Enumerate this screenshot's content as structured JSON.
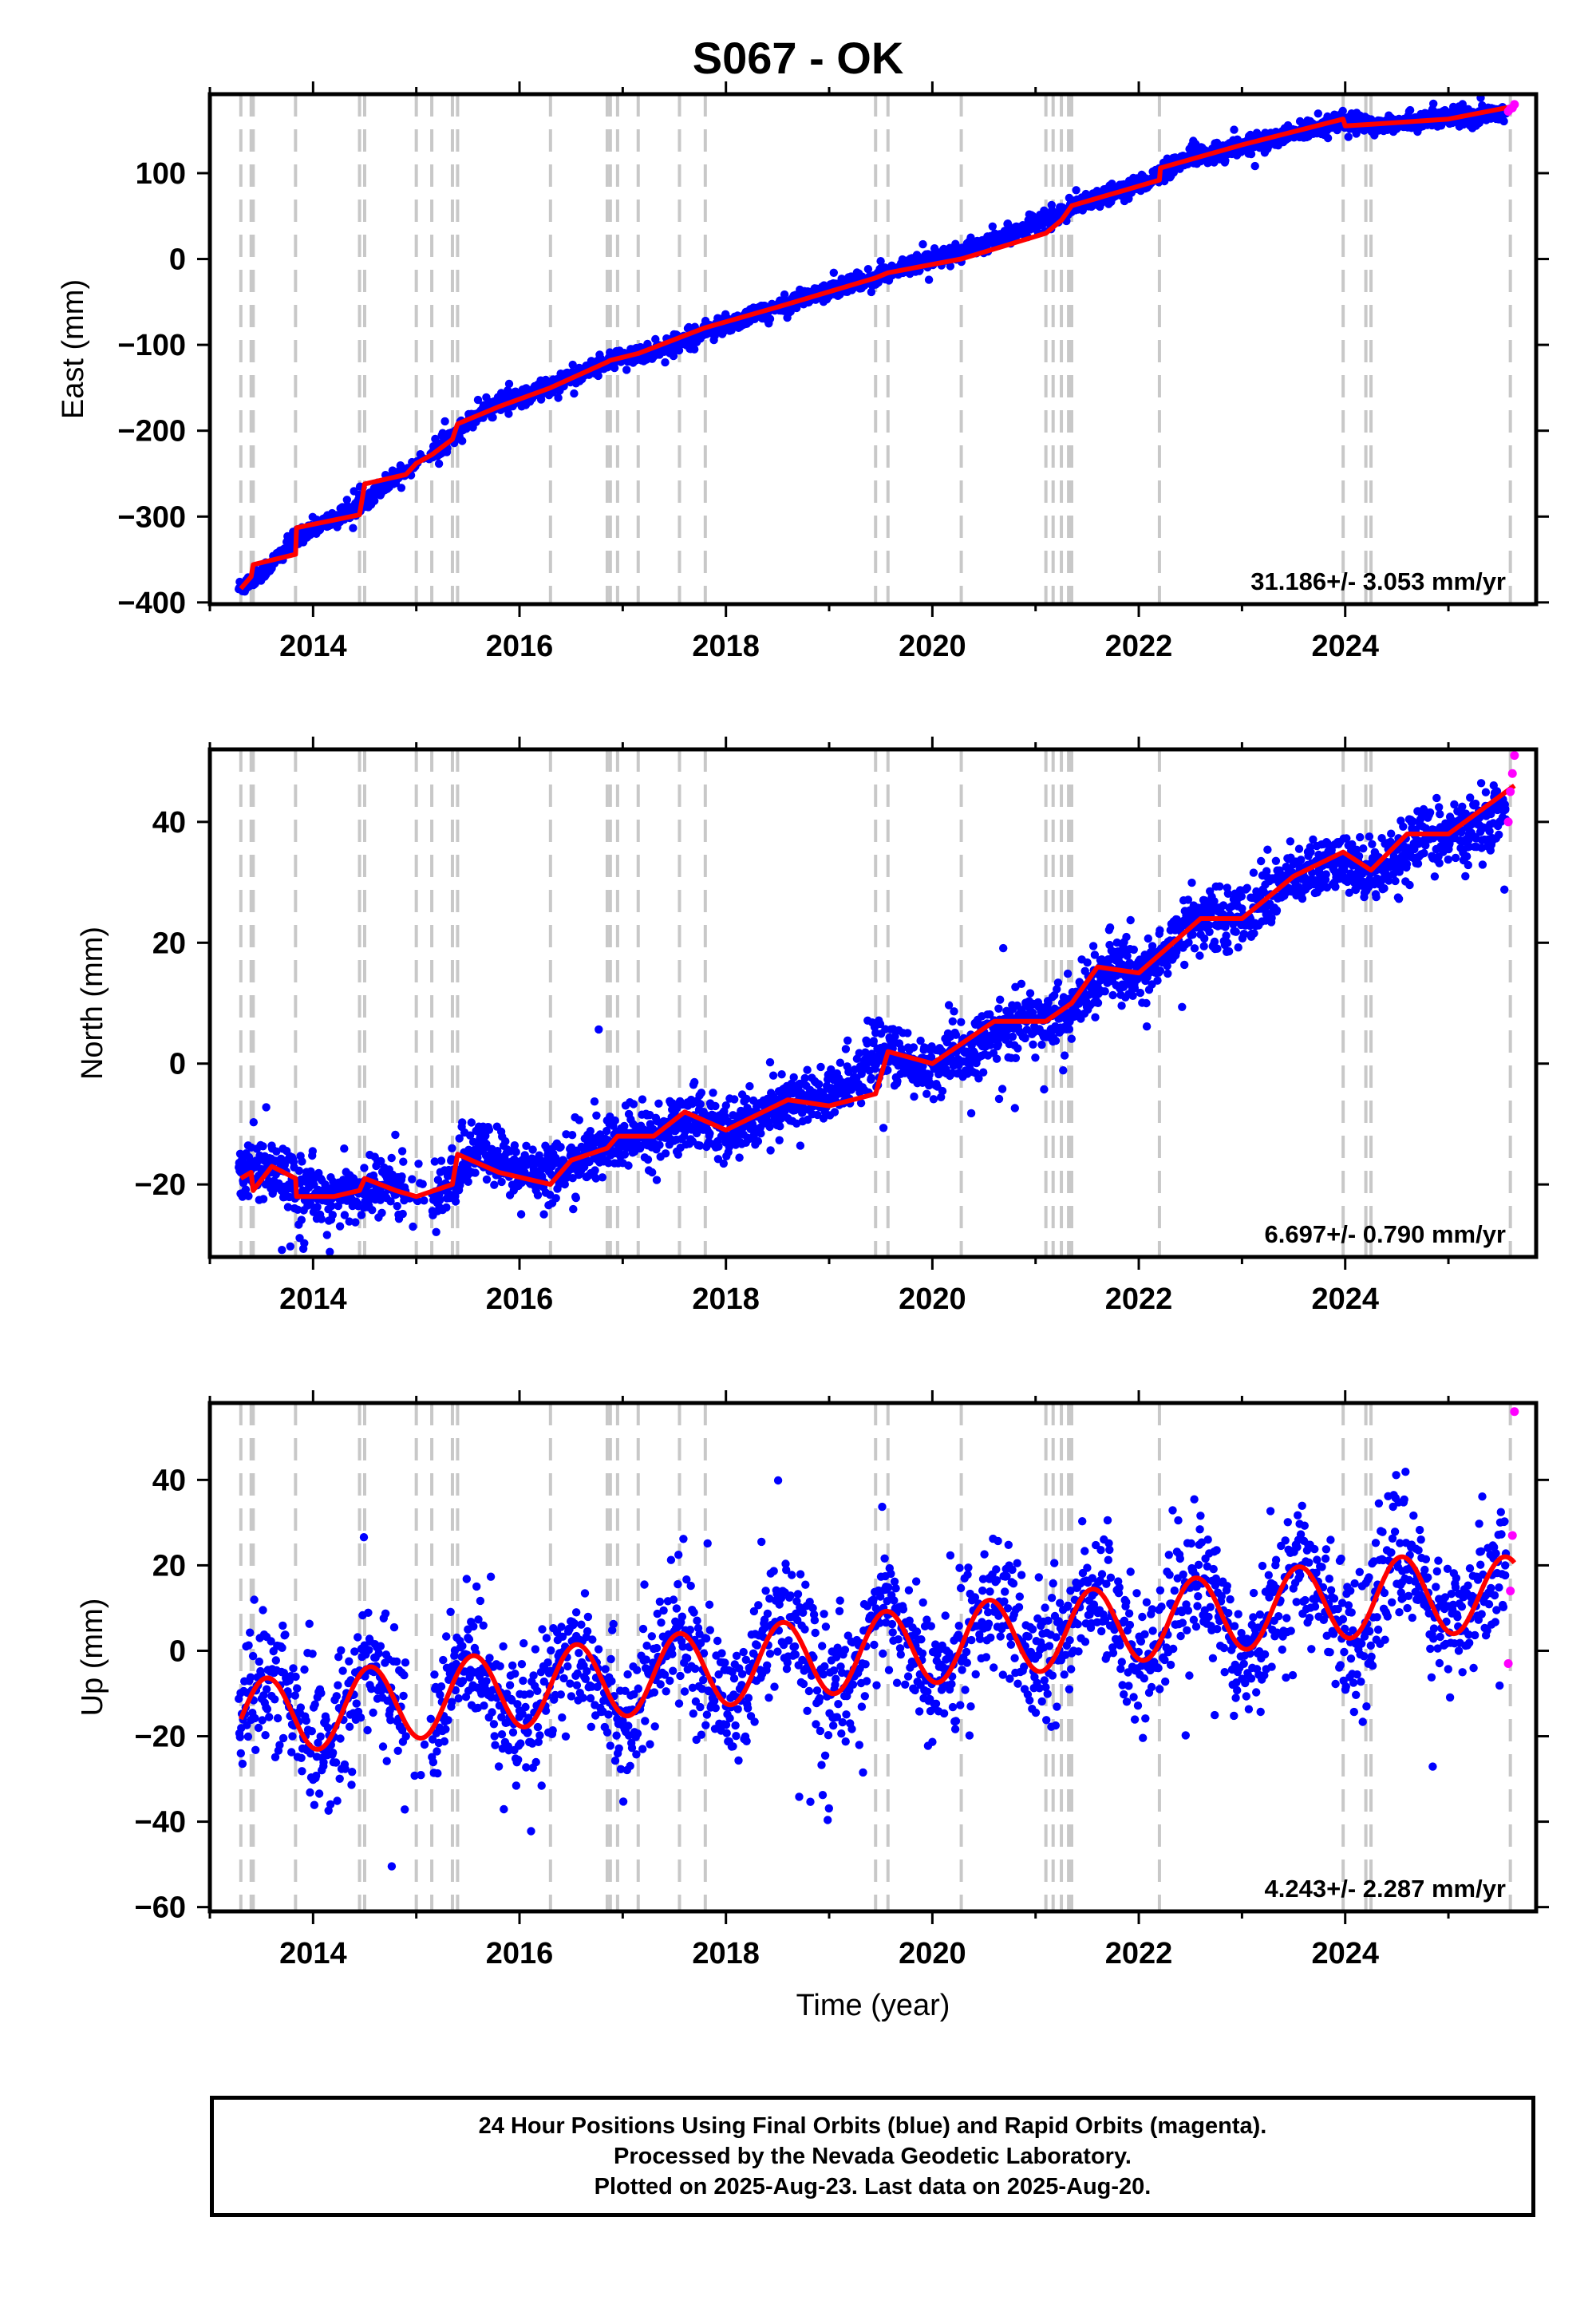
{
  "title": "S067 - OK",
  "colors": {
    "final_orbits": "#0000ff",
    "rapid_orbits": "#ff00ff",
    "model": "#ff0000",
    "steps": "#c8c8c8"
  },
  "footer": {
    "line1": "24 Hour Positions Using Final Orbits (blue) and Rapid Orbits (magenta).",
    "line2": "Processed by the Nevada Geodetic Laboratory.",
    "line3": "Plotted on 2025-Aug-23. Last data on 2025-Aug-20."
  },
  "chart_data": [
    {
      "type": "scatter",
      "title": "S067 - OK",
      "ylabel": "East (mm)",
      "xlabel": "",
      "xlim": [
        2013.0,
        2025.85
      ],
      "ylim": [
        -402,
        192
      ],
      "xticks": [
        2014,
        2016,
        2018,
        2020,
        2022,
        2024
      ],
      "yticks": [
        -400,
        -300,
        -200,
        -100,
        0,
        100
      ],
      "rate": "31.186+/- 3.053 mm/yr",
      "steps": [
        2013.3,
        2013.4,
        2013.42,
        2013.83,
        2014.45,
        2014.5,
        2015.0,
        2015.15,
        2015.35,
        2015.4,
        2016.3,
        2016.85,
        2016.88,
        2016.95,
        2017.15,
        2017.55,
        2017.8,
        2019.45,
        2019.57,
        2020.28,
        2021.1,
        2021.17,
        2021.25,
        2021.32,
        2021.35,
        2022.2,
        2023.98,
        2024.2,
        2024.25,
        2025.6
      ],
      "series": [
        {
          "name": "Final Orbits",
          "color": "#0000ff",
          "x": [
            2013.3,
            2013.6,
            2013.9,
            2014.3,
            2014.7,
            2015.2,
            2015.6,
            2016.0,
            2016.5,
            2016.9,
            2017.3,
            2017.7,
            2018.1,
            2018.6,
            2019.0,
            2019.5,
            2019.9,
            2020.4,
            2020.8,
            2021.3,
            2021.7,
            2022.1,
            2022.5,
            2023.0,
            2023.4,
            2023.9,
            2024.3,
            2024.8,
            2025.2,
            2025.55
          ],
          "y": [
            -383,
            -355,
            -318,
            -298,
            -262,
            -222,
            -180,
            -160,
            -138,
            -118,
            -108,
            -88,
            -72,
            -52,
            -35,
            -20,
            -2,
            12,
            32,
            55,
            75,
            92,
            118,
            132,
            142,
            160,
            157,
            163,
            166,
            170
          ]
        },
        {
          "name": "Rapid Orbits",
          "color": "#ff00ff",
          "x": [
            2025.58,
            2025.6,
            2025.62,
            2025.64
          ],
          "y": [
            172,
            175,
            176,
            180
          ]
        }
      ],
      "model": {
        "x": [
          2013.3,
          2013.4,
          2013.42,
          2013.83,
          2013.84,
          2014.45,
          2014.5,
          2014.9,
          2015.0,
          2015.15,
          2015.35,
          2015.4,
          2015.8,
          2016.3,
          2016.85,
          2016.88,
          2016.95,
          2017.15,
          2017.8,
          2018.5,
          2019.45,
          2019.57,
          2020.28,
          2021.1,
          2021.25,
          2021.35,
          2022.2,
          2022.21,
          2023.0,
          2023.98,
          2024.0,
          2024.25,
          2025.0,
          2025.64
        ],
        "y": [
          -384,
          -370,
          -356,
          -344,
          -313,
          -298,
          -262,
          -251,
          -238,
          -228,
          -210,
          -192,
          -172,
          -150,
          -120,
          -118,
          -116,
          -110,
          -80,
          -56,
          -22,
          -16,
          0,
          30,
          45,
          62,
          92,
          106,
          133,
          163,
          155,
          157,
          163,
          178
        ]
      }
    },
    {
      "type": "scatter",
      "title": "",
      "ylabel": "North (mm)",
      "xlabel": "",
      "xlim": [
        2013.0,
        2025.85
      ],
      "ylim": [
        -32,
        52
      ],
      "xticks": [
        2014,
        2016,
        2018,
        2020,
        2022,
        2024
      ],
      "yticks": [
        -20,
        0,
        20,
        40
      ],
      "rate": "6.697+/- 0.790 mm/yr",
      "steps": [
        2013.3,
        2013.4,
        2013.42,
        2013.83,
        2014.45,
        2014.5,
        2015.0,
        2015.15,
        2015.35,
        2015.4,
        2016.3,
        2016.85,
        2016.88,
        2016.95,
        2017.15,
        2017.55,
        2017.8,
        2019.45,
        2019.57,
        2020.28,
        2021.1,
        2021.17,
        2021.25,
        2021.32,
        2021.35,
        2022.2,
        2023.98,
        2024.2,
        2024.25,
        2025.6
      ],
      "series": [
        {
          "name": "Final Orbits",
          "color": "#0000ff",
          "x": [
            2013.3,
            2013.6,
            2013.9,
            2014.3,
            2014.7,
            2015.2,
            2015.6,
            2016.0,
            2016.5,
            2016.9,
            2017.3,
            2017.7,
            2018.1,
            2018.6,
            2019.0,
            2019.5,
            2019.9,
            2020.4,
            2020.8,
            2021.3,
            2021.7,
            2022.1,
            2022.5,
            2023.0,
            2023.4,
            2023.9,
            2024.3,
            2024.8,
            2025.2,
            2025.55
          ],
          "y": [
            -18,
            -18,
            -21,
            -22,
            -20,
            -22,
            -14,
            -18,
            -17,
            -13,
            -12,
            -9,
            -11,
            -6,
            -6,
            2,
            -1,
            2,
            7,
            8,
            16,
            15,
            24,
            24,
            30,
            33,
            32,
            38,
            38,
            42
          ]
        },
        {
          "name": "Rapid Orbits",
          "color": "#ff00ff",
          "x": [
            2025.58,
            2025.6,
            2025.62,
            2025.64
          ],
          "y": [
            40,
            45,
            48,
            51
          ]
        }
      ],
      "model": {
        "x": [
          2013.3,
          2013.4,
          2013.42,
          2013.6,
          2013.83,
          2013.84,
          2014.2,
          2014.45,
          2014.5,
          2014.8,
          2015.0,
          2015.35,
          2015.4,
          2015.8,
          2016.3,
          2016.5,
          2016.85,
          2016.95,
          2017.3,
          2017.6,
          2018.0,
          2018.6,
          2019.0,
          2019.45,
          2019.57,
          2020.0,
          2020.6,
          2021.1,
          2021.35,
          2021.6,
          2022.0,
          2022.6,
          2023.0,
          2023.5,
          2023.98,
          2024.25,
          2024.6,
          2025.0,
          2025.64
        ],
        "y": [
          -19,
          -18,
          -21,
          -17,
          -19,
          -22,
          -22,
          -21,
          -19,
          -21,
          -22,
          -20,
          -15,
          -18,
          -20,
          -16,
          -14,
          -12,
          -12,
          -8,
          -11,
          -6,
          -7,
          -5,
          2,
          0,
          7,
          7,
          10,
          16,
          15,
          24,
          24,
          31,
          35,
          32,
          38,
          38,
          46
        ]
      }
    },
    {
      "type": "scatter",
      "title": "",
      "ylabel": "Up (mm)",
      "xlabel": "Time (year)",
      "xlim": [
        2013.0,
        2025.85
      ],
      "ylim": [
        -61,
        58
      ],
      "xticks": [
        2014,
        2016,
        2018,
        2020,
        2022,
        2024
      ],
      "yticks": [
        -60,
        -40,
        -20,
        0,
        20,
        40
      ],
      "rate": "4.243+/- 2.287 mm/yr",
      "steps": [
        2013.3,
        2013.4,
        2013.42,
        2013.83,
        2014.45,
        2014.5,
        2015.0,
        2015.15,
        2015.35,
        2015.4,
        2016.3,
        2016.85,
        2016.88,
        2016.95,
        2017.15,
        2017.55,
        2017.8,
        2019.45,
        2019.57,
        2020.28,
        2021.1,
        2021.17,
        2021.25,
        2021.32,
        2021.35,
        2022.2,
        2023.98,
        2024.2,
        2024.25,
        2025.6
      ],
      "series": [
        {
          "name": "Final Orbits",
          "color": "#0000ff",
          "x": [
            2013.3,
            2013.55,
            2013.8,
            2014.1,
            2014.55,
            2014.9,
            2015.5,
            2016.0,
            2016.55,
            2016.95,
            2017.55,
            2018.0,
            2018.55,
            2019.05,
            2019.55,
            2020.1,
            2020.55,
            2021.05,
            2021.55,
            2022.1,
            2022.55,
            2023.1,
            2023.55,
            2024.05,
            2024.55,
            2025.1,
            2025.55
          ],
          "y": [
            -24,
            -9,
            -20,
            -27,
            -8,
            -20,
            5,
            -14,
            9,
            -14,
            6,
            -13,
            14,
            -9,
            15,
            -4,
            17,
            2,
            17,
            -3,
            15,
            -4,
            17,
            2,
            16,
            0,
            20
          ]
        },
        {
          "name": "Rapid Orbits",
          "color": "#ff00ff",
          "x": [
            2025.58,
            2025.6,
            2025.62,
            2025.64
          ],
          "y": [
            -3,
            14,
            27,
            56
          ]
        }
      ],
      "model": {
        "period": 1.0,
        "phase_peak": 2013.55,
        "amplitude": 9,
        "trend": {
          "t0": 2013.3,
          "y0": -16,
          "rate": 2.6,
          "cap": 13
        }
      }
    }
  ]
}
